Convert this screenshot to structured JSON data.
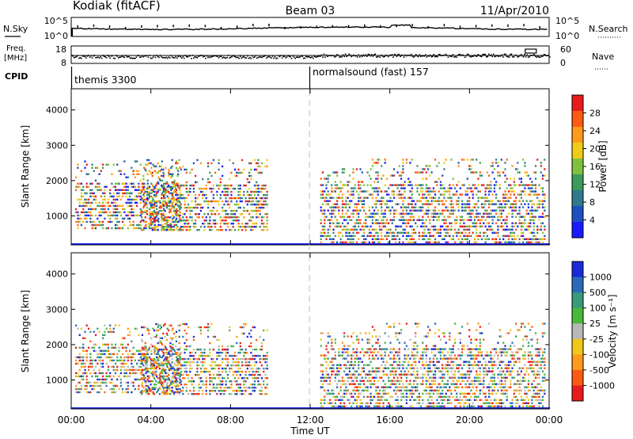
{
  "header": {
    "station": "Kodiak (fitACF)",
    "beam": "Beam 03",
    "date": "11/Apr/2010"
  },
  "sky_panel": {
    "left_label": "N.Sky",
    "left_ticks": [
      "10^5",
      "10^0"
    ],
    "right_label": "N.Search",
    "right_ticks": [
      "10^5",
      "10^0"
    ]
  },
  "freq_panel": {
    "left_label_1": "Freq.",
    "left_label_2": "[MHz]",
    "left_ticks": [
      "18",
      "8"
    ],
    "right_label": "Nave",
    "right_ticks": [
      "60",
      "0"
    ]
  },
  "cpid_panel": {
    "label": "CPID",
    "mode_1": "themis 3300",
    "mode_2": "normalsound (fast) 157"
  },
  "power_panel": {
    "ylabel": "Slant Range [km]",
    "yticks": [
      "1000",
      "2000",
      "3000",
      "4000"
    ],
    "colorbar_label": "Power [dB]",
    "colorbar_ticks": [
      "4",
      "8",
      "12",
      "16",
      "20",
      "24",
      "28"
    ],
    "colors": [
      "#1a1aff",
      "#1d4fc0",
      "#2e7a8a",
      "#3c9a5a",
      "#7fc13c",
      "#f0cc1a",
      "#ff9a1a",
      "#ff5a14",
      "#e81c1c"
    ]
  },
  "velocity_panel": {
    "ylabel": "Slant Range [km]",
    "yticks": [
      "1000",
      "2000",
      "3000",
      "4000"
    ],
    "colorbar_label": "Velocity [m s⁻¹]",
    "colorbar_ticks": [
      "1000",
      "500",
      "100",
      "25",
      "-25",
      "-100",
      "-500",
      "-1000"
    ],
    "colors": [
      "#1a2ad8",
      "#2a6ab8",
      "#3a9a7a",
      "#4ab83a",
      "#b8b8b8",
      "#f0c81a",
      "#ff9a1a",
      "#ff5a14",
      "#e81c1c"
    ]
  },
  "xaxis": {
    "label": "Time UT",
    "ticks": [
      "00:00",
      "04:00",
      "08:00",
      "12:00",
      "16:00",
      "20:00",
      "00:00"
    ]
  },
  "chart_data": [
    {
      "type": "heatmap",
      "title": "Power [dB]",
      "xlabel": "Time UT",
      "ylabel": "Slant Range [km]",
      "xlim": [
        0,
        24
      ],
      "ylim": [
        180,
        4600
      ],
      "clim": [
        0,
        32
      ],
      "echo_regions": [
        {
          "t": [
            0.2,
            5.5
          ],
          "range": [
            600,
            2500
          ],
          "value": 18
        },
        {
          "t": [
            3.5,
            9.8
          ],
          "range": [
            550,
            2600
          ],
          "value": 20
        },
        {
          "t": [
            12.5,
            15.0
          ],
          "range": [
            200,
            2300
          ],
          "value": 16
        },
        {
          "t": [
            15.0,
            23.8
          ],
          "range": [
            200,
            2600
          ],
          "value": 19
        }
      ]
    },
    {
      "type": "heatmap",
      "title": "Velocity [m s⁻¹]",
      "xlabel": "Time UT",
      "ylabel": "Slant Range [km]",
      "xlim": [
        0,
        24
      ],
      "ylim": [
        180,
        4600
      ],
      "clim": [
        -1000,
        1000
      ],
      "echo_regions": [
        {
          "t": [
            0.2,
            5.5
          ],
          "range": [
            600,
            2500
          ],
          "value": 0
        },
        {
          "t": [
            3.5,
            9.8
          ],
          "range": [
            550,
            2600
          ],
          "value": 40
        },
        {
          "t": [
            12.5,
            15.0
          ],
          "range": [
            200,
            2300
          ],
          "value": -60
        },
        {
          "t": [
            15.0,
            23.8
          ],
          "range": [
            200,
            2600
          ],
          "value": -40
        }
      ]
    },
    {
      "type": "line",
      "title": "N.Sky",
      "ylim_label": [
        "10^0",
        "10^5"
      ],
      "x": [
        0,
        24
      ],
      "level": "roughly constant near top"
    },
    {
      "type": "scatter",
      "title": "Freq. [MHz]",
      "ylim": [
        8,
        18
      ],
      "x": [
        0,
        24
      ],
      "value_range_mhz": [
        11,
        12
      ]
    }
  ]
}
